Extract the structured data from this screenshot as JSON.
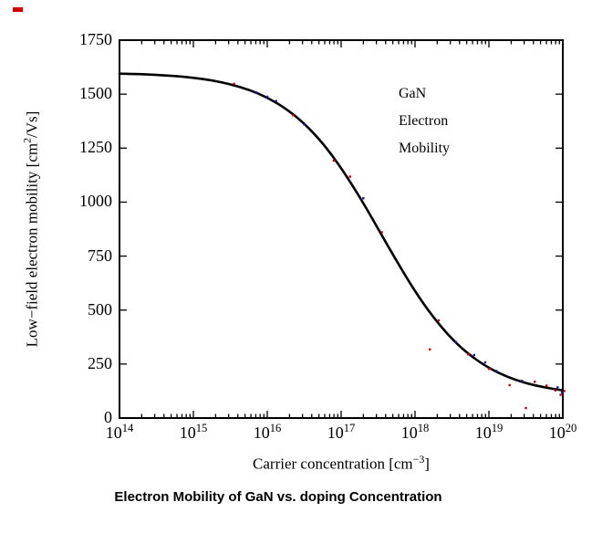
{
  "caption": "Electron Mobility of GaN vs. doping Concentration",
  "stray_mark_color": "#cc0000",
  "chart_data": {
    "type": "line",
    "title": "",
    "grid": false,
    "legend": "none",
    "annotation": {
      "lines": [
        "GaN",
        "Electron",
        "Mobility"
      ]
    },
    "x_axis": {
      "scale": "log10",
      "min_exp": 14,
      "max_exp": 20,
      "tick_base": "10",
      "tick_exponents": [
        14,
        15,
        16,
        17,
        18,
        19,
        20
      ],
      "label_prefix": "Carrier concentration [cm",
      "label_sup": "−3",
      "label_suffix": "]"
    },
    "y_axis": {
      "min": 0,
      "max": 1750,
      "tick_values": [
        0,
        250,
        500,
        750,
        1000,
        1250,
        1500,
        1750
      ],
      "label_prefix": "Low−field electron mobility [cm",
      "label_sup": "2",
      "label_suffix": "/Vs]"
    },
    "series": [
      {
        "name": "model curve",
        "type": "line",
        "color": "#000000",
        "x_log10": [
          14.0,
          14.25,
          14.5,
          14.75,
          15.0,
          15.25,
          15.5,
          15.75,
          16.0,
          16.25,
          16.5,
          16.75,
          17.0,
          17.25,
          17.5,
          17.75,
          18.0,
          18.25,
          18.5,
          18.75,
          19.0,
          19.25,
          19.5,
          19.75,
          20.0
        ],
        "y": [
          1595,
          1593,
          1589,
          1584,
          1576,
          1564,
          1546,
          1521,
          1485,
          1434,
          1365,
          1274,
          1159,
          1025,
          877,
          727,
          586,
          464,
          365,
          288,
          231,
          190,
          161,
          142,
          128
        ]
      },
      {
        "name": "experimental data (red)",
        "type": "scatter",
        "color": "#cc0000",
        "points": [
          [
            15.55,
            1548
          ],
          [
            16.35,
            1402
          ],
          [
            16.9,
            1192
          ],
          [
            17.12,
            1118
          ],
          [
            17.55,
            860
          ],
          [
            18.2,
            318
          ],
          [
            18.32,
            452
          ],
          [
            18.72,
            295
          ],
          [
            19.0,
            228
          ],
          [
            19.28,
            152
          ],
          [
            19.5,
            46
          ],
          [
            19.62,
            168
          ],
          [
            19.78,
            150
          ],
          [
            19.9,
            128
          ],
          [
            19.97,
            108
          ],
          [
            20.02,
            125
          ]
        ]
      },
      {
        "name": "experimental data (blue)",
        "type": "scatter",
        "color": "#1a1aaa",
        "points": [
          [
            15.85,
            1508
          ],
          [
            16.0,
            1488
          ],
          [
            16.12,
            1468
          ],
          [
            16.5,
            1360
          ],
          [
            17.3,
            1018
          ],
          [
            18.55,
            352
          ],
          [
            18.8,
            292
          ],
          [
            18.95,
            258
          ],
          [
            19.1,
            218
          ],
          [
            19.45,
            172
          ],
          [
            19.93,
            142
          ],
          [
            19.99,
            118
          ]
        ]
      }
    ]
  }
}
